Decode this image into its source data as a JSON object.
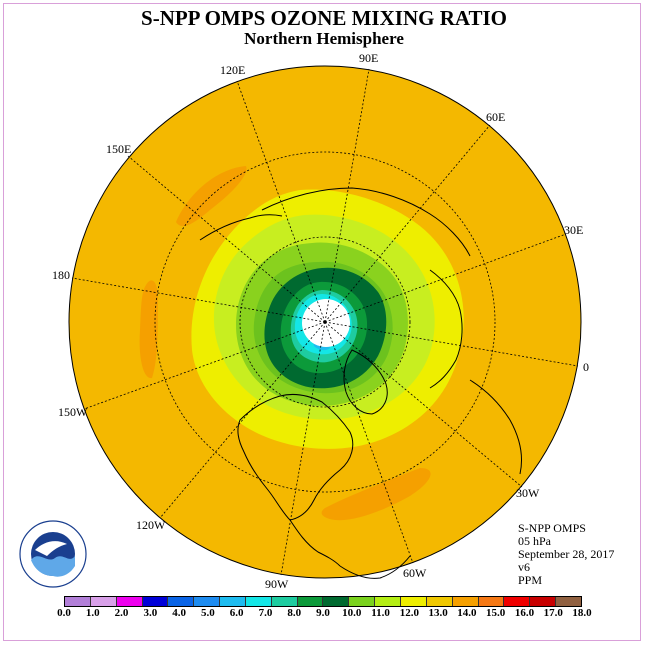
{
  "title": "S-NPP OMPS OZONE MIXING RATIO",
  "subtitle": "Northern Hemisphere",
  "longitude_labels": {
    "lon_90e": "90E",
    "lon_60e": "60E",
    "lon_30e": "30E",
    "lon_0": "0",
    "lon_30w": "30W",
    "lon_60w": "60W",
    "lon_90w": "90W",
    "lon_120w": "120W",
    "lon_150w": "150W",
    "lon_180": "180",
    "lon_150e": "150E",
    "lon_120e": "120E"
  },
  "info": {
    "instrument": "S-NPP OMPS",
    "pressure_level": "05 hPa",
    "date": "September 28, 2017",
    "version": "v6",
    "units": "PPM"
  },
  "colorbar": {
    "colors": [
      "#b27fd8",
      "#d8a0e8",
      "#ee00ee",
      "#0000d8",
      "#0a64e6",
      "#1e8cf0",
      "#1ebcf0",
      "#14e6e6",
      "#1ecca0",
      "#0c9a3a",
      "#006a30",
      "#7ad21e",
      "#b4ee14",
      "#eeee00",
      "#f0c800",
      "#f5a000",
      "#f57814",
      "#f00000",
      "#c80000",
      "#906040"
    ],
    "tick_labels": [
      "0.0",
      "1.0",
      "2.0",
      "3.0",
      "4.0",
      "5.0",
      "6.0",
      "7.0",
      "8.0",
      "9.0",
      "10.0",
      "11.0",
      "12.0",
      "13.0",
      "14.0",
      "15.0",
      "16.0",
      "17.0",
      "18.0"
    ]
  },
  "colors": {
    "background_field": "#f4b800",
    "pole_region": "#ffffff"
  }
}
